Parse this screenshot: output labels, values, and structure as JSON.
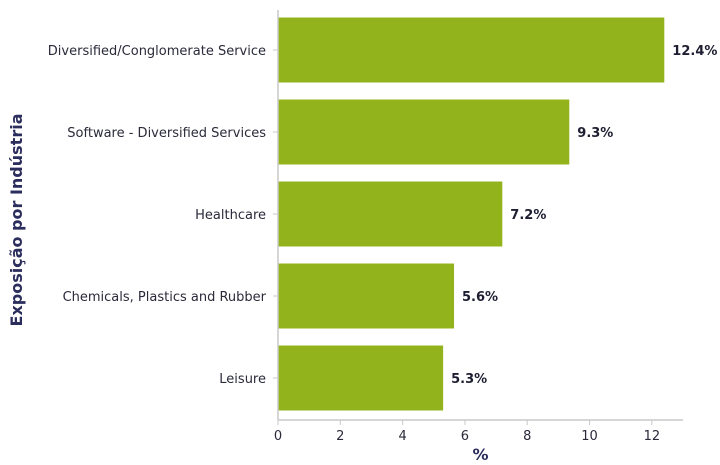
{
  "chart_data": {
    "type": "bar",
    "orientation": "horizontal",
    "categories": [
      "Diversified/Conglomerate Service",
      "Software - Diversified Services",
      "Healthcare",
      "Chemicals, Plastics and Rubber",
      "Leisure"
    ],
    "values": [
      12.4,
      9.35,
      7.2,
      5.65,
      5.3
    ],
    "data_labels": [
      "12.4%",
      "9.3%",
      "7.2%",
      "5.6%",
      "5.3%"
    ],
    "xlabel": "%",
    "ylabel": "Exposição por Indústria",
    "xlim": [
      0,
      13
    ],
    "xticks": [
      0,
      2,
      4,
      6,
      8,
      10,
      12
    ],
    "grid": false,
    "legend": "none",
    "colors": {
      "bar": "#93b31c",
      "axis": "#c9c9c9",
      "text": "#2a2a3a",
      "axis_title": "#2b2d5c"
    }
  }
}
